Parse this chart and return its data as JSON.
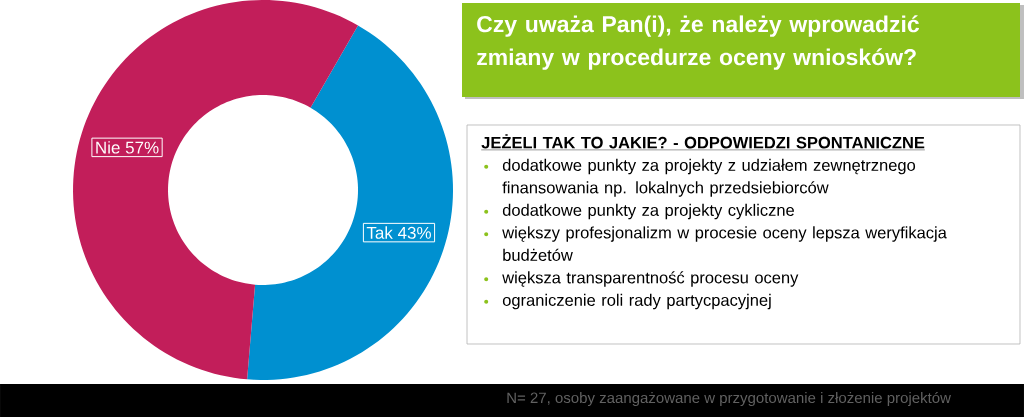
{
  "chart_data": {
    "type": "donut",
    "title": "Czy uważa Pan(i), że należy wprowadzić zmiany w procedurze oceny wniosków?",
    "categories": [
      "Tak",
      "Nie"
    ],
    "values": [
      43,
      57
    ],
    "value_labels": [
      "43%",
      "57%"
    ],
    "colors": [
      "#0090d0",
      "#c21e5a"
    ],
    "annotations": [
      "JEŻELI TAK TO JAKIE? - ODPOWIEDZI SPONTANICZNE",
      "dodatkowe punkty za projekty z udziałem zewnętrznego finansowania np. lokalnych przedsiebiorców",
      "dodatkowe punkty za projekty cykliczne",
      "większy profesjonalizm w procesie oceny lepsza weryfikacja budżetów",
      "większa transparentność procesu oceny",
      "ograniczenie roli rady partycpacyjnej",
      "N= 27, osoby zaangażowane w przygotowanie i złożenie projektów"
    ]
  }
}
